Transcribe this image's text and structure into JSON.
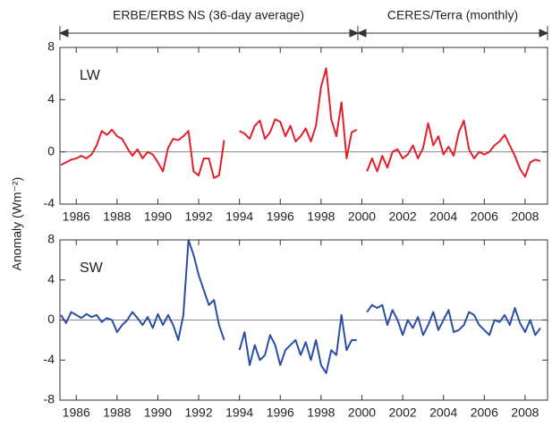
{
  "header": {
    "left": "ERBE/ERBS NS (36-day average)",
    "right": "CERES/Terra (monthly)"
  },
  "y_label": "Anomaly (Wm⁻²)",
  "chart_data": [
    {
      "type": "line",
      "label": "LW",
      "x": [
        1985.25,
        1985.5,
        1985.75,
        1986,
        1986.25,
        1986.5,
        1986.75,
        1987,
        1987.25,
        1987.5,
        1987.75,
        1988,
        1988.25,
        1988.5,
        1988.75,
        1989,
        1989.25,
        1989.5,
        1989.75,
        1990,
        1990.25,
        1990.5,
        1990.75,
        1991,
        1991.25,
        1991.5,
        1991.75,
        1992,
        1992.25,
        1992.5,
        1992.75,
        1993,
        1993.25,
        1993.5,
        1993.75,
        1994,
        1994.25,
        1994.5,
        1994.75,
        1995,
        1995.25,
        1995.5,
        1995.75,
        1996,
        1996.25,
        1996.5,
        1996.75,
        1997,
        1997.25,
        1997.5,
        1997.75,
        1998,
        1998.25,
        1998.5,
        1998.75,
        1999,
        1999.25,
        1999.5,
        1999.75,
        2000,
        2000.25,
        2000.5,
        2000.75,
        2001,
        2001.25,
        2001.5,
        2001.75,
        2002,
        2002.25,
        2002.5,
        2002.75,
        2003,
        2003.25,
        2003.5,
        2003.75,
        2004,
        2004.25,
        2004.5,
        2004.75,
        2005,
        2005.25,
        2005.5,
        2005.75,
        2006,
        2006.25,
        2006.5,
        2006.75,
        2007,
        2007.25,
        2007.5,
        2007.75,
        2008,
        2008.25,
        2008.5,
        2008.75
      ],
      "series": [
        {
          "color": "#e2202c",
          "values": [
            -1.0,
            -0.8,
            -0.6,
            -0.5,
            -0.3,
            -0.5,
            -0.2,
            0.5,
            1.6,
            1.3,
            1.7,
            1.2,
            1.0,
            0.3,
            -0.3,
            0.2,
            -0.5,
            0.0,
            -0.2,
            -0.8,
            -1.5,
            0.3,
            1.0,
            0.9,
            1.2,
            1.6,
            -1.5,
            -1.8,
            -0.5,
            -0.5,
            -2.0,
            -1.8,
            0.9,
            null,
            null,
            1.6,
            1.4,
            1.0,
            2.0,
            2.4,
            1.0,
            1.5,
            2.5,
            2.3,
            1.2,
            2.0,
            0.8,
            1.2,
            1.8,
            0.8,
            2.0,
            5.0,
            6.4,
            2.5,
            1.2,
            3.8,
            -0.5,
            1.5,
            1.7,
            null,
            -1.5,
            -0.5,
            -1.5,
            -0.3,
            -1.2,
            0.0,
            0.2,
            -0.5,
            -0.2,
            0.5,
            -0.5,
            0.3,
            2.2,
            0.5,
            1.2,
            -0.2,
            0.4,
            -0.3,
            1.5,
            2.4,
            0.2,
            -0.5,
            0.0,
            -0.2,
            0.0,
            0.5,
            0.8,
            1.3,
            0.5,
            -0.3,
            -1.3,
            -1.9,
            -0.8,
            -0.6,
            -0.7
          ]
        }
      ],
      "xlim": [
        1985.2,
        2009.1
      ],
      "xticks": [
        1986,
        1988,
        1990,
        1992,
        1994,
        1996,
        1998,
        2000,
        2002,
        2004,
        2006,
        2008
      ],
      "ylim": [
        -4,
        8
      ],
      "yticks": [
        -4,
        0,
        4,
        8
      ],
      "zero_line": true
    },
    {
      "type": "line",
      "label": "SW",
      "x": [
        1985.25,
        1985.5,
        1985.75,
        1986,
        1986.25,
        1986.5,
        1986.75,
        1987,
        1987.25,
        1987.5,
        1987.75,
        1988,
        1988.25,
        1988.5,
        1988.75,
        1989,
        1989.25,
        1989.5,
        1989.75,
        1990,
        1990.25,
        1990.5,
        1990.75,
        1991,
        1991.25,
        1991.5,
        1991.75,
        1992,
        1992.25,
        1992.5,
        1992.75,
        1993,
        1993.25,
        1993.5,
        1993.75,
        1994,
        1994.25,
        1994.5,
        1994.75,
        1995,
        1995.25,
        1995.5,
        1995.75,
        1996,
        1996.25,
        1996.5,
        1996.75,
        1997,
        1997.25,
        1997.5,
        1997.75,
        1998,
        1998.25,
        1998.5,
        1998.75,
        1999,
        1999.25,
        1999.5,
        1999.75,
        2000,
        2000.25,
        2000.5,
        2000.75,
        2001,
        2001.25,
        2001.5,
        2001.75,
        2002,
        2002.25,
        2002.5,
        2002.75,
        2003,
        2003.25,
        2003.5,
        2003.75,
        2004,
        2004.25,
        2004.5,
        2004.75,
        2005,
        2005.25,
        2005.5,
        2005.75,
        2006,
        2006.25,
        2006.5,
        2006.75,
        2007,
        2007.25,
        2007.5,
        2007.75,
        2008,
        2008.25,
        2008.5,
        2008.75
      ],
      "series": [
        {
          "color": "#2a4ea6",
          "values": [
            0.5,
            -0.3,
            0.8,
            0.5,
            0.2,
            0.6,
            0.3,
            0.5,
            -0.2,
            0.2,
            0.0,
            -1.2,
            -0.5,
            0.0,
            0.8,
            0.2,
            -0.5,
            0.3,
            -0.8,
            0.6,
            -0.5,
            0.5,
            -0.5,
            -2.0,
            0.5,
            8.0,
            6.5,
            4.5,
            3.0,
            1.5,
            2.0,
            -0.5,
            -2.0,
            null,
            null,
            -3.0,
            -1.2,
            -4.5,
            -2.5,
            -4.0,
            -3.5,
            -1.5,
            -2.5,
            -4.5,
            -3.0,
            -2.5,
            -2.0,
            -3.5,
            -2.2,
            -4.0,
            -2.0,
            -4.5,
            -5.3,
            -3.0,
            -3.5,
            0.5,
            -3.0,
            -2.0,
            -2.0,
            null,
            0.8,
            1.5,
            1.2,
            1.5,
            -0.5,
            1.0,
            0.0,
            -1.5,
            0.0,
            -0.8,
            0.3,
            -1.5,
            -0.5,
            0.8,
            -1.0,
            0.0,
            1.0,
            -1.2,
            -1.0,
            -0.5,
            0.8,
            0.5,
            -0.5,
            -1.0,
            -1.5,
            0.0,
            -0.2,
            0.5,
            -0.5,
            1.2,
            -0.3,
            -1.2,
            0.0,
            -1.5,
            -0.8
          ]
        }
      ],
      "xlim": [
        1985.2,
        2009.1
      ],
      "xticks": [
        1986,
        1988,
        1990,
        1992,
        1994,
        1996,
        1998,
        2000,
        2002,
        2004,
        2006,
        2008
      ],
      "ylim": [
        -8,
        8
      ],
      "yticks": [
        -8,
        -4,
        0,
        4,
        8
      ],
      "zero_line": true
    }
  ]
}
